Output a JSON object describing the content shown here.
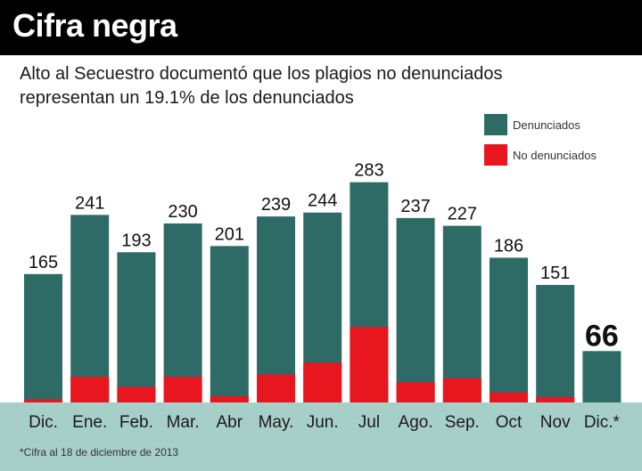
{
  "header": {
    "title": "Cifra negra",
    "subtitle_line1": "Alto al Secuestro documentó que los plagios no denunciados",
    "subtitle_line2": "representan un 19.1% de los denunciados"
  },
  "legend": {
    "reported": "Denunciados",
    "unreported": "No denunciados"
  },
  "footnote": "*Cifra al 18 de diciembre de 2013",
  "colors": {
    "reported": "#2e6b67",
    "unreported": "#e8161e",
    "band": "#a7cfc9"
  },
  "chart_data": {
    "type": "bar",
    "title": "Cifra negra",
    "categories": [
      "Dic.",
      "Ene.",
      "Feb.",
      "Mar.",
      "Abr",
      "May.",
      "Jun.",
      "Jul",
      "Ago.",
      "Sep.",
      "Oct",
      "Nov",
      "Dic.*"
    ],
    "series": [
      {
        "name": "Denunciados",
        "values": [
          165,
          241,
          193,
          230,
          201,
          239,
          244,
          283,
          237,
          227,
          186,
          151,
          66
        ]
      },
      {
        "name": "No denunciados",
        "values": [
          4,
          33,
          20,
          33,
          8,
          36,
          51,
          97,
          26,
          31,
          13,
          7,
          0
        ]
      }
    ],
    "data_labels": [
      "165",
      "241",
      "193",
      "230",
      "201",
      "239",
      "244",
      "283",
      "237",
      "227",
      "186",
      "151",
      "66"
    ],
    "ylim": [
      0,
      300
    ],
    "legend_position": "top-right"
  }
}
